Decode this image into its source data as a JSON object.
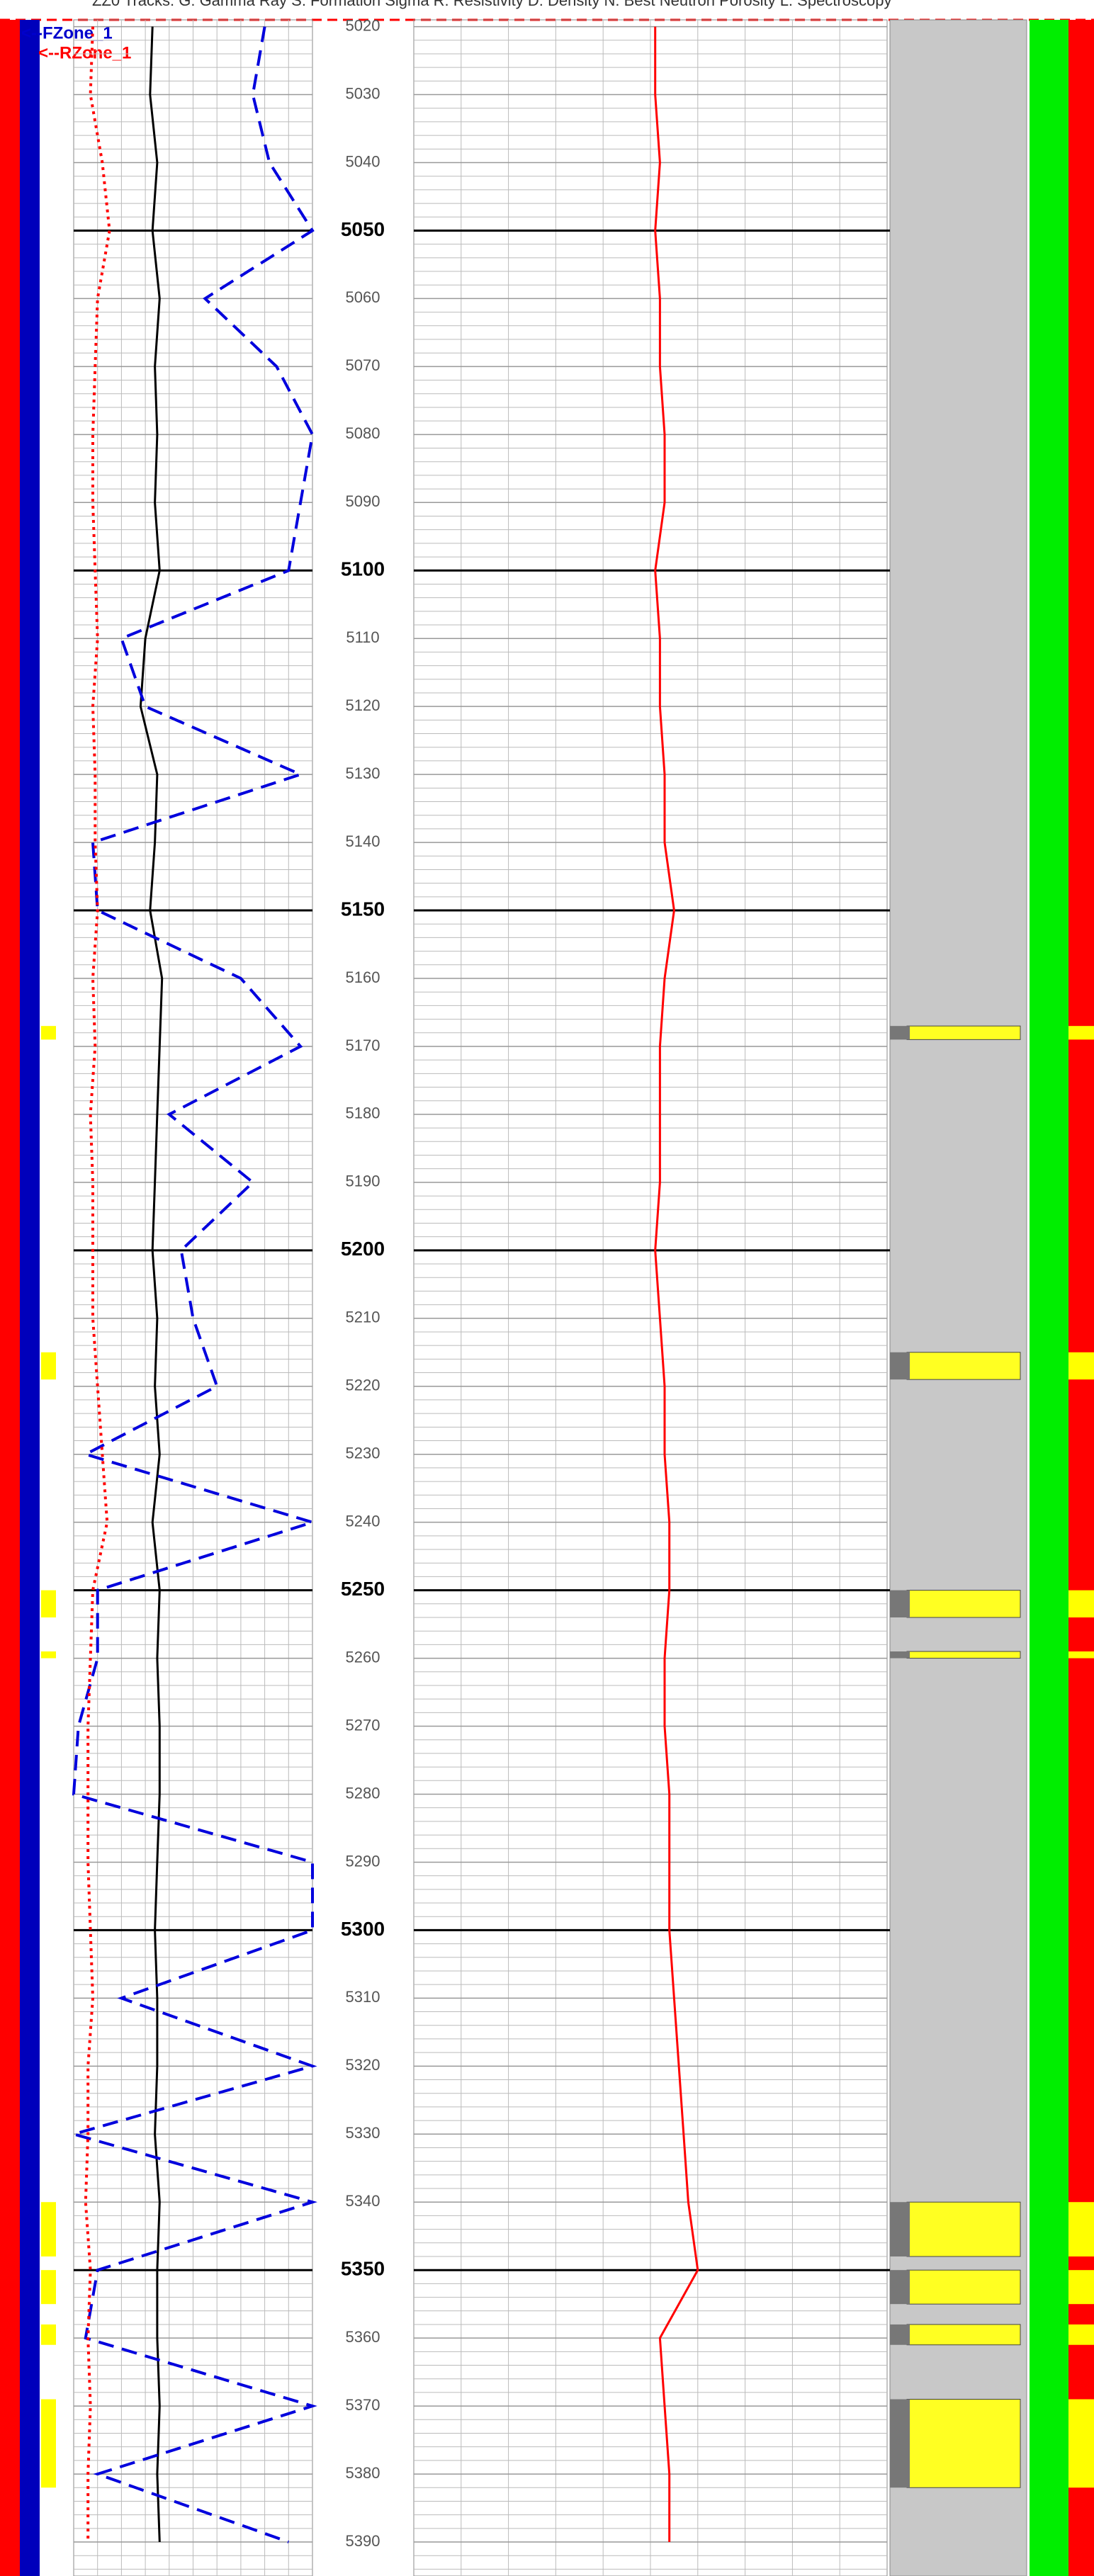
{
  "chart_data": {
    "type": "well-log",
    "header": "ZZ0 Tracks:   G: Gamma Ray     S: Formation Sigma     R: Resistivity     D: Density     N: Best Neutron Porosity     L: Spectroscopy",
    "zones": [
      {
        "label": "<--FZone_1",
        "color": "#0000cc"
      },
      {
        "label": "<--RZone_1",
        "color": "#ff0000"
      }
    ],
    "ylim": [
      5019,
      5395
    ],
    "xlim": [
      0,
      100
    ],
    "yticks": [
      5020,
      5030,
      5040,
      5050,
      5060,
      5070,
      5080,
      5090,
      5100,
      5110,
      5120,
      5130,
      5140,
      5150,
      5160,
      5170,
      5180,
      5190,
      5200,
      5210,
      5220,
      5230,
      5240,
      5250,
      5260,
      5270,
      5280,
      5290,
      5300,
      5310,
      5320,
      5330,
      5340,
      5350,
      5360,
      5370,
      5380,
      5390
    ],
    "series": [
      {
        "track": "track1",
        "color": "#000000",
        "dash": "solid",
        "values": [
          33,
          32,
          35,
          33,
          36,
          34,
          35,
          34,
          36,
          30,
          28,
          35,
          34,
          32,
          37,
          36,
          35,
          34,
          33,
          35,
          34,
          36,
          33,
          36,
          35,
          36,
          36,
          35,
          34,
          35,
          35,
          34,
          36,
          35,
          35,
          36,
          35,
          36
        ]
      },
      {
        "track": "track1",
        "color": "#0000dd",
        "dash": "dash",
        "values": [
          80,
          75,
          82,
          100,
          55,
          85,
          100,
          95,
          90,
          20,
          30,
          95,
          8,
          10,
          70,
          95,
          40,
          75,
          45,
          50,
          60,
          5,
          100,
          10,
          10,
          2,
          0,
          100,
          100,
          20,
          100,
          0,
          100,
          10,
          5,
          100,
          10,
          90
        ]
      },
      {
        "track": "track1",
        "color": "#ff0000",
        "dash": "dot",
        "values": [
          8,
          7,
          12,
          15,
          10,
          9,
          8,
          8,
          9,
          10,
          8,
          9,
          9,
          10,
          8,
          9,
          7,
          8,
          8,
          8,
          10,
          12,
          14,
          8,
          7,
          6,
          6,
          6,
          7,
          8,
          6,
          6,
          5,
          7,
          6,
          7,
          6,
          6
        ]
      },
      {
        "track": "track2",
        "color": "#ff0000",
        "dash": "solid",
        "values": [
          51,
          51,
          52,
          51,
          52,
          52,
          53,
          53,
          51,
          52,
          52,
          53,
          53,
          55,
          53,
          52,
          52,
          52,
          51,
          52,
          53,
          53,
          54,
          54,
          53,
          53,
          54,
          54,
          54,
          55,
          56,
          57,
          58,
          60,
          52,
          53,
          54,
          54
        ]
      }
    ],
    "pay_intervals": [
      [
        5167,
        5169
      ],
      [
        5215,
        5219
      ],
      [
        5250,
        5254
      ],
      [
        5259,
        5260
      ],
      [
        5340,
        5348
      ],
      [
        5350,
        5355
      ],
      [
        5358,
        5361
      ],
      [
        5369,
        5382
      ]
    ]
  }
}
